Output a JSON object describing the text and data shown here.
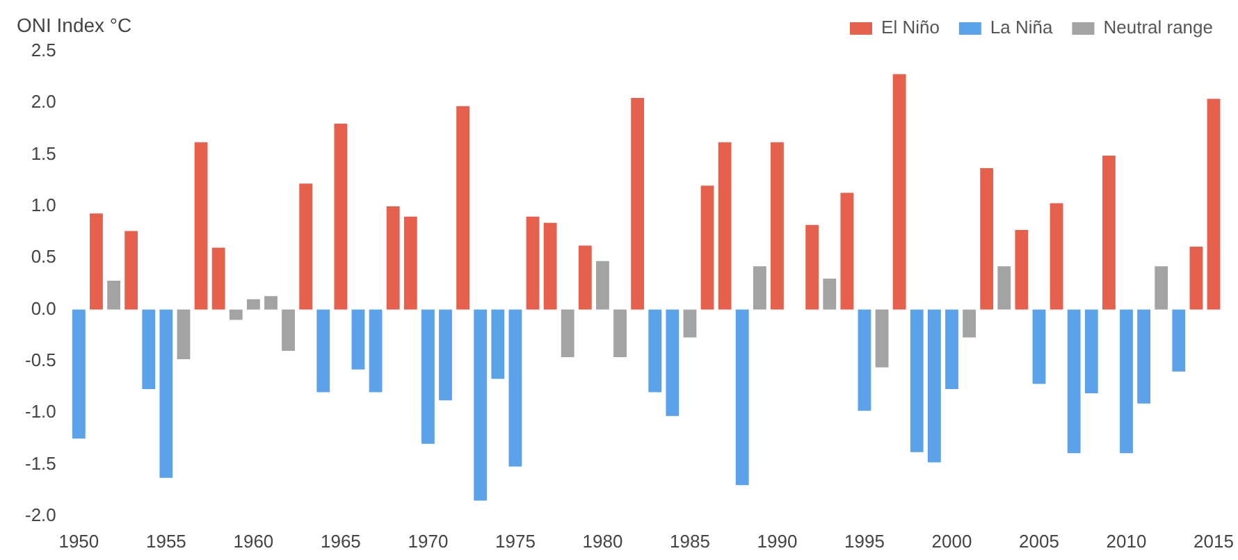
{
  "chart_data": {
    "type": "bar",
    "ylabel": "ONI Index °C",
    "legend": "top right",
    "categories": [
      "1950",
      null,
      null,
      null,
      null,
      "1955",
      null,
      null,
      null,
      null,
      "1960",
      null,
      null,
      null,
      null,
      "1965",
      null,
      null,
      null,
      null,
      "1970",
      null,
      null,
      null,
      null,
      "1975",
      null,
      null,
      null,
      null,
      "1980",
      null,
      null,
      null,
      null,
      "1985",
      null,
      null,
      null,
      null,
      "1990",
      null,
      null,
      null,
      null,
      "1995",
      null,
      null,
      null,
      null,
      "2000",
      null,
      null,
      null,
      null,
      "2005",
      null,
      null,
      null,
      null,
      "2010",
      null,
      null,
      null,
      null,
      "2015"
    ],
    "series": [
      {
        "name": "El Niño",
        "color": "#e5604d",
        "values": [
          null,
          0.93,
          null,
          0.76,
          null,
          null,
          null,
          1.62,
          0.6,
          null,
          null,
          null,
          null,
          1.22,
          null,
          1.8,
          null,
          null,
          1.0,
          0.9,
          null,
          null,
          1.97,
          null,
          null,
          null,
          0.9,
          0.84,
          null,
          0.62,
          null,
          null,
          2.05,
          null,
          null,
          null,
          1.2,
          1.62,
          null,
          null,
          1.62,
          null,
          0.82,
          null,
          1.13,
          null,
          null,
          2.28,
          null,
          null,
          null,
          null,
          1.37,
          null,
          0.77,
          null,
          1.03,
          null,
          null,
          1.49,
          null,
          null,
          null,
          null,
          0.61,
          2.04
        ]
      },
      {
        "name": "La Niña",
        "color": "#5ca2e8",
        "values": [
          -1.25,
          null,
          null,
          null,
          -0.77,
          -1.63,
          null,
          null,
          null,
          null,
          null,
          null,
          null,
          null,
          -0.8,
          null,
          -0.58,
          -0.8,
          null,
          null,
          -1.3,
          -0.88,
          null,
          -1.85,
          -0.67,
          -1.52,
          null,
          null,
          null,
          null,
          null,
          null,
          null,
          -0.8,
          -1.03,
          null,
          null,
          null,
          -1.7,
          null,
          null,
          null,
          null,
          null,
          null,
          -0.98,
          null,
          null,
          -1.38,
          -1.48,
          -0.77,
          null,
          null,
          null,
          null,
          -0.72,
          null,
          -1.39,
          -0.81,
          null,
          -1.39,
          -0.91,
          null,
          -0.6,
          null,
          null
        ]
      },
      {
        "name": "Neutral range",
        "color": "#a3a3a3",
        "values": [
          null,
          null,
          0.28,
          null,
          null,
          null,
          -0.48,
          null,
          null,
          -0.1,
          0.1,
          0.13,
          -0.4,
          null,
          null,
          null,
          null,
          null,
          null,
          null,
          null,
          null,
          null,
          null,
          null,
          null,
          null,
          null,
          -0.46,
          null,
          0.47,
          -0.46,
          null,
          null,
          null,
          -0.27,
          null,
          null,
          null,
          0.42,
          null,
          null,
          null,
          0.3,
          null,
          null,
          -0.56,
          null,
          null,
          null,
          null,
          -0.27,
          null,
          0.42,
          null,
          null,
          null,
          null,
          null,
          null,
          null,
          null,
          0.42,
          null,
          null,
          null
        ]
      }
    ],
    "ylim": [
      -2.0,
      2.5
    ],
    "yticks": [
      {
        "value": -2.0,
        "label": "-2.0"
      },
      -1.5,
      {
        "value": -1.0,
        "label": "-1.0"
      },
      -0.5,
      {
        "value": 0.0,
        "label": "0.0"
      },
      0.5,
      {
        "value": 1.0,
        "label": "1.0"
      },
      1.5,
      {
        "value": 2.0,
        "label": "2.0"
      },
      2.5
    ]
  }
}
